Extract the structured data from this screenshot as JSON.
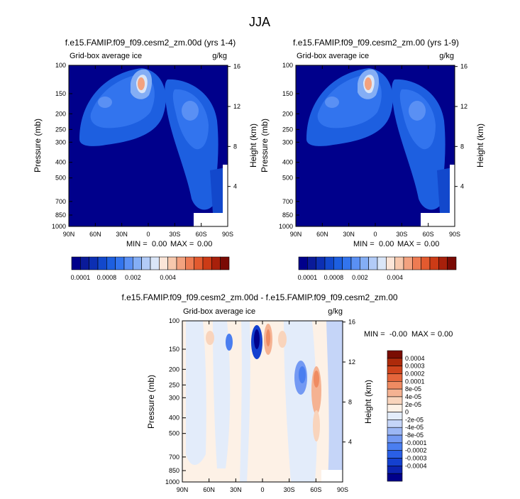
{
  "main_title": "JJA",
  "colors": {
    "abs_scale": [
      "#00008b",
      "#0a1a99",
      "#0c2fb3",
      "#1248cc",
      "#1d5fe0",
      "#3274ee",
      "#5a90f4",
      "#84aef5",
      "#b2cbf7",
      "#dae6f8",
      "#fbe5d8",
      "#f7c8ad",
      "#f3a27f",
      "#ee7b52",
      "#e35a2f",
      "#cc3b16",
      "#a8200b",
      "#7a0a04"
    ],
    "diff_scale": [
      "#00008b",
      "#0c23b0",
      "#1440cf",
      "#2a5fe6",
      "#4a7ef0",
      "#7399f3",
      "#9cb7f5",
      "#c5d5f8",
      "#e3ecfa",
      "#fdf1e6",
      "#f9d4bc",
      "#f5b292",
      "#ef8b62",
      "#e5663c",
      "#cf441d",
      "#ad2a0b",
      "#7a0d02"
    ]
  },
  "chart_data": [
    {
      "type": "heatmap",
      "title": "f.e15.FAMIP.f09_f09.cesm2_zm.00d (yrs 1-4)",
      "left_label": "Grid-box average ice",
      "units": "g/kg",
      "ylabel": "Pressure (mb)",
      "ylabel_right": "Height (km)",
      "x_ticks": [
        "90N",
        "60N",
        "30N",
        "0",
        "30S",
        "60S",
        "90S"
      ],
      "y_ticks": [
        "100",
        "150",
        "200",
        "250",
        "300",
        "400",
        "500",
        "700",
        "850",
        "1000"
      ],
      "y_right_ticks": [
        "16",
        "12",
        "8",
        "4"
      ],
      "stats": {
        "min_label": "MIN =",
        "min": "0.00",
        "max_label": "MAX =",
        "max": "0.00"
      },
      "colorbar_labels": [
        "0.0001",
        "0.0008",
        "0.002",
        "0.004"
      ],
      "xlim": [
        90,
        -90
      ],
      "ylim": [
        1000,
        100
      ],
      "y_scale": "log"
    },
    {
      "type": "heatmap",
      "title": "f.e15.FAMIP.f09_f09.cesm2_zm.00 (yrs 1-9)",
      "left_label": "Grid-box average ice",
      "units": "g/kg",
      "ylabel": "Pressure (mb)",
      "ylabel_right": "Height (km)",
      "x_ticks": [
        "90N",
        "60N",
        "30N",
        "0",
        "30S",
        "60S",
        "90S"
      ],
      "y_ticks": [
        "100",
        "150",
        "200",
        "250",
        "300",
        "400",
        "500",
        "700",
        "850",
        "1000"
      ],
      "y_right_ticks": [
        "16",
        "12",
        "8",
        "4"
      ],
      "stats": {
        "min_label": "MIN =",
        "min": "0.00",
        "max_label": "MAX =",
        "max": "0.00"
      },
      "colorbar_labels": [
        "0.0001",
        "0.0008",
        "0.002",
        "0.004"
      ],
      "xlim": [
        90,
        -90
      ],
      "ylim": [
        1000,
        100
      ],
      "y_scale": "log"
    },
    {
      "type": "heatmap",
      "title": "f.e15.FAMIP.f09_f09.cesm2_zm.00d - f.e15.FAMIP.f09_f09.cesm2_zm.00",
      "left_label": "Grid-box average ice",
      "units": "g/kg",
      "ylabel": "Pressure (mb)",
      "ylabel_right": "Height (km)",
      "x_ticks": [
        "90N",
        "60N",
        "30N",
        "0",
        "30S",
        "60S",
        "90S"
      ],
      "y_ticks": [
        "100",
        "150",
        "200",
        "250",
        "300",
        "400",
        "500",
        "700",
        "850",
        "1000"
      ],
      "y_right_ticks": [
        "16",
        "12",
        "8",
        "4"
      ],
      "stats": {
        "min_label": "MIN =",
        "min": "-0.00",
        "max_label": "MAX =",
        "max": "0.00"
      },
      "colorbar_labels": [
        "0.0004",
        "0.0003",
        "0.0002",
        "0.0001",
        "8e-05",
        "4e-05",
        "2e-05",
        "0",
        "-2e-05",
        "-4e-05",
        "-8e-05",
        "-0.0001",
        "-0.0002",
        "-0.0003",
        "-0.0004"
      ],
      "xlim": [
        90,
        -90
      ],
      "ylim": [
        1000,
        100
      ],
      "y_scale": "log"
    }
  ]
}
